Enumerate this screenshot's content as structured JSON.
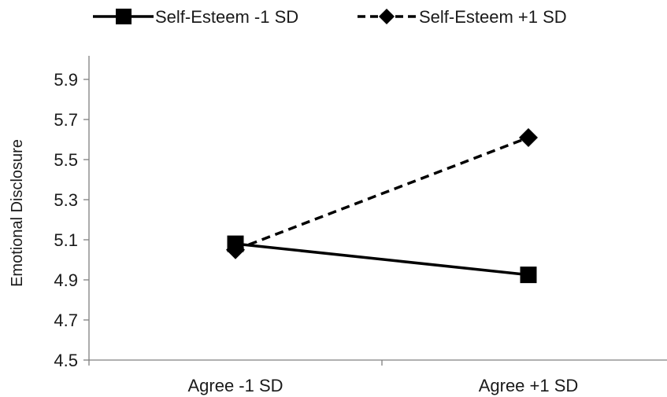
{
  "chart_data": {
    "type": "line",
    "categories": [
      "Agree -1 SD",
      "Agree +1 SD"
    ],
    "series": [
      {
        "name": "Self-Esteem -1 SD",
        "values": [
          5.08,
          4.925
        ],
        "color": "#000000",
        "dash": "solid",
        "marker": "square"
      },
      {
        "name": "Self-Esteem +1 SD",
        "values": [
          5.05,
          5.61
        ],
        "color": "#000000",
        "dash": "dashed",
        "marker": "diamond"
      }
    ],
    "ylabel": "Emotional Disclosure",
    "ylim": [
      4.5,
      5.9
    ],
    "yticks": [
      "4.5",
      "4.7",
      "4.9",
      "5.1",
      "5.3",
      "5.5",
      "5.7",
      "5.9"
    ],
    "grid": false,
    "legend": "top"
  }
}
